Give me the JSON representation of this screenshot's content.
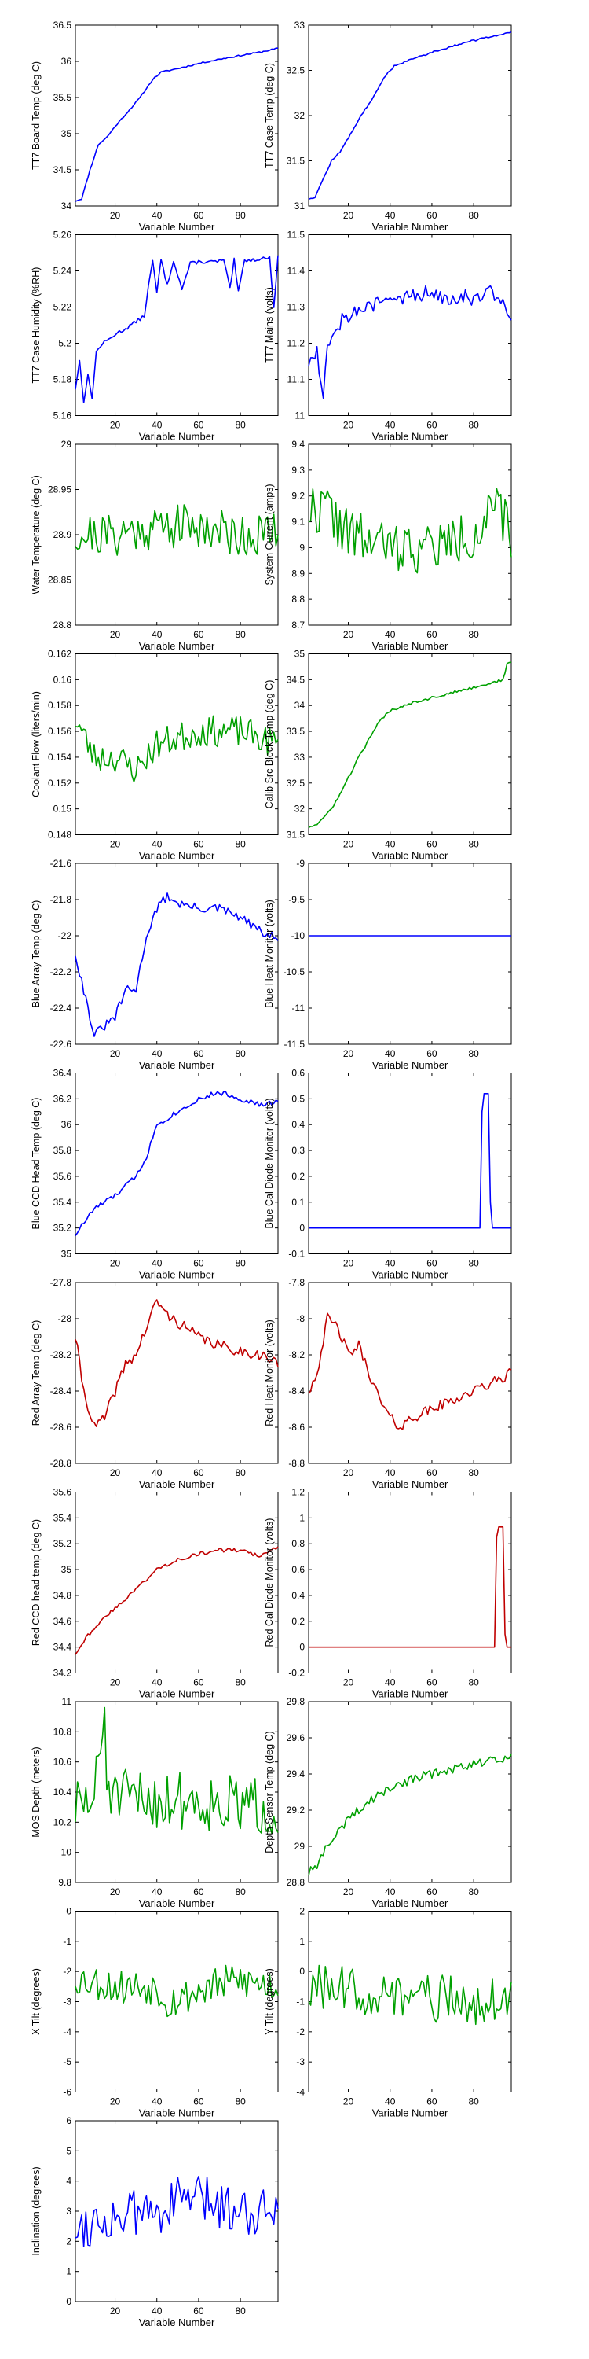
{
  "colors": {
    "blue": "#0000ff",
    "green": "#00a000",
    "red": "#c00000"
  },
  "chart_data": [
    {
      "type": "line",
      "xlabel": "Variable Number",
      "ylabel": "TT7 Board Temp (deg C)",
      "xlim": [
        1,
        98
      ],
      "ylim": [
        34,
        36.5
      ],
      "xticks": [
        20,
        40,
        60,
        80
      ],
      "yticks": [
        34,
        34.5,
        35,
        35.5,
        36,
        36.5
      ],
      "color": "blue",
      "noise": 0.01,
      "seed": 11,
      "x": [
        1,
        4,
        8,
        12,
        16,
        20,
        26,
        32,
        38,
        42,
        50,
        60,
        70,
        80,
        90,
        98
      ],
      "y": [
        34.07,
        34.1,
        34.5,
        34.85,
        34.95,
        35.1,
        35.3,
        35.5,
        35.75,
        35.85,
        35.9,
        35.97,
        36.03,
        36.08,
        36.13,
        36.18
      ]
    },
    {
      "type": "line",
      "xlabel": "Variable Number",
      "ylabel": "TT7 Case Temp (deg C)",
      "xlim": [
        1,
        98
      ],
      "ylim": [
        31,
        33
      ],
      "xticks": [
        20,
        40,
        60,
        80
      ],
      "yticks": [
        31,
        31.5,
        32,
        32.5,
        33
      ],
      "color": "blue",
      "noise": 0.01,
      "seed": 12,
      "x": [
        1,
        4,
        8,
        12,
        16,
        20,
        26,
        32,
        38,
        42,
        50,
        60,
        70,
        80,
        90,
        98
      ],
      "y": [
        31.08,
        31.1,
        31.3,
        31.5,
        31.6,
        31.75,
        32.0,
        32.2,
        32.45,
        32.55,
        32.62,
        32.7,
        32.77,
        32.83,
        32.88,
        32.93
      ]
    },
    {
      "type": "line",
      "xlabel": "Variable Number",
      "ylabel": "TT7 Case Humidity (%RH)",
      "xlim": [
        1,
        98
      ],
      "ylim": [
        5.16,
        5.26
      ],
      "xticks": [
        20,
        40,
        60,
        80
      ],
      "yticks": [
        5.16,
        5.18,
        5.2,
        5.22,
        5.24,
        5.26
      ],
      "color": "blue",
      "noise": 0.001,
      "seed": 13,
      "x": [
        1,
        3,
        5,
        7,
        9,
        11,
        14,
        17,
        20,
        25,
        30,
        34,
        36,
        38,
        40,
        42,
        45,
        48,
        52,
        56,
        60,
        64,
        68,
        72,
        75,
        77,
        79,
        82,
        86,
        90,
        94,
        96,
        98
      ],
      "y": [
        5.175,
        5.19,
        5.168,
        5.182,
        5.17,
        5.195,
        5.2,
        5.202,
        5.205,
        5.208,
        5.212,
        5.215,
        5.232,
        5.245,
        5.228,
        5.246,
        5.232,
        5.246,
        5.23,
        5.244,
        5.245,
        5.245,
        5.245,
        5.246,
        5.23,
        5.246,
        5.228,
        5.246,
        5.246,
        5.247,
        5.247,
        5.22,
        5.248
      ]
    },
    {
      "type": "line",
      "xlabel": "Variable Number",
      "ylabel": "TT7 Mains  (volts)",
      "xlim": [
        1,
        98
      ],
      "ylim": [
        11,
        11.5
      ],
      "xticks": [
        20,
        40,
        60,
        80
      ],
      "yticks": [
        11,
        11.1,
        11.2,
        11.3,
        11.4,
        11.5
      ],
      "color": "blue",
      "noise": 0.025,
      "seed": 14,
      "x": [
        1,
        5,
        8,
        10,
        14,
        20,
        30,
        40,
        50,
        60,
        70,
        80,
        90,
        95,
        98
      ],
      "y": [
        11.15,
        11.18,
        11.05,
        11.2,
        11.25,
        11.28,
        11.3,
        11.32,
        11.33,
        11.34,
        11.33,
        11.33,
        11.34,
        11.3,
        11.27
      ]
    },
    {
      "type": "line",
      "xlabel": "Variable Number",
      "ylabel": "Water Temperature (deg C)",
      "xlim": [
        1,
        98
      ],
      "ylim": [
        28.8,
        29
      ],
      "xticks": [
        20,
        40,
        60,
        80
      ],
      "yticks": [
        28.8,
        28.85,
        28.9,
        28.95,
        29
      ],
      "color": "green",
      "noise": 0.025,
      "seed": 21,
      "x": [
        1,
        20,
        40,
        60,
        80,
        98
      ],
      "y": [
        28.9,
        28.9,
        28.91,
        28.91,
        28.9,
        28.9
      ]
    },
    {
      "type": "line",
      "xlabel": "Variable Number",
      "ylabel": "System Current (amps)",
      "xlim": [
        1,
        98
      ],
      "ylim": [
        8.7,
        9.4
      ],
      "xticks": [
        20,
        40,
        60,
        80
      ],
      "yticks": [
        8.7,
        8.8,
        8.9,
        9,
        9.1,
        9.2,
        9.3,
        9.4
      ],
      "color": "green",
      "noise": 0.1,
      "seed": 22,
      "x": [
        1,
        10,
        20,
        40,
        60,
        80,
        90,
        98
      ],
      "y": [
        9.15,
        9.15,
        9.05,
        9.0,
        9.0,
        9.05,
        9.15,
        9.05
      ]
    },
    {
      "type": "line",
      "xlabel": "Variable Number",
      "ylabel": "Coolant Flow (liters/min)",
      "xlim": [
        1,
        98
      ],
      "ylim": [
        0.148,
        0.162
      ],
      "xticks": [
        20,
        40,
        60,
        80
      ],
      "yticks": [
        0.148,
        0.15,
        0.152,
        0.154,
        0.156,
        0.158,
        0.16,
        0.162
      ],
      "color": "green",
      "noise": 0.0012,
      "seed": 23,
      "x": [
        1,
        10,
        20,
        30,
        40,
        60,
        80,
        98
      ],
      "y": [
        0.157,
        0.154,
        0.154,
        0.153,
        0.155,
        0.156,
        0.156,
        0.155
      ]
    },
    {
      "type": "line",
      "xlabel": "Variable Number",
      "ylabel": "Calib Src Block Temp (deg C)",
      "xlim": [
        1,
        98
      ],
      "ylim": [
        31.5,
        35
      ],
      "xticks": [
        20,
        40,
        60,
        80
      ],
      "yticks": [
        31.5,
        32,
        32.5,
        33,
        33.5,
        34,
        34.5,
        35
      ],
      "color": "green",
      "noise": 0.025,
      "seed": 24,
      "x": [
        1,
        5,
        10,
        15,
        20,
        25,
        30,
        35,
        40,
        50,
        60,
        70,
        80,
        90,
        94,
        96,
        98
      ],
      "y": [
        31.65,
        31.7,
        31.9,
        32.2,
        32.6,
        33.0,
        33.35,
        33.7,
        33.9,
        34.05,
        34.15,
        34.25,
        34.35,
        34.45,
        34.5,
        34.8,
        34.85
      ]
    },
    {
      "type": "line",
      "xlabel": "Variable Number",
      "ylabel": "Blue Array Temp (deg C)",
      "xlim": [
        1,
        98
      ],
      "ylim": [
        -22.6,
        -21.6
      ],
      "xticks": [
        20,
        40,
        60,
        80
      ],
      "yticks": [
        -22.6,
        -22.4,
        -22.2,
        -22,
        -21.8,
        -21.6
      ],
      "color": "blue",
      "noise": 0.025,
      "seed": 31,
      "x": [
        1,
        5,
        10,
        15,
        20,
        25,
        30,
        35,
        40,
        45,
        50,
        60,
        70,
        80,
        90,
        98
      ],
      "y": [
        -22.1,
        -22.3,
        -22.55,
        -22.5,
        -22.45,
        -22.3,
        -22.3,
        -22.0,
        -21.85,
        -21.78,
        -21.82,
        -21.85,
        -21.85,
        -21.9,
        -21.98,
        -22.02
      ]
    },
    {
      "type": "line",
      "xlabel": "Variable Number",
      "ylabel": "Blue Heat Monitor (volts)",
      "xlim": [
        1,
        98
      ],
      "ylim": [
        -11.5,
        -9
      ],
      "xticks": [
        20,
        40,
        60,
        80
      ],
      "yticks": [
        -11.5,
        -11,
        -10.5,
        -10,
        -9.5,
        -9
      ],
      "color": "blue",
      "noise": 0,
      "seed": 32,
      "x": [
        1,
        98
      ],
      "y": [
        -10,
        -10
      ]
    },
    {
      "type": "line",
      "xlabel": "Variable Number",
      "ylabel": "Blue CCD Head Temp (deg C)",
      "xlim": [
        1,
        98
      ],
      "ylim": [
        35,
        36.4
      ],
      "xticks": [
        20,
        40,
        60,
        80
      ],
      "yticks": [
        35,
        35.2,
        35.4,
        35.6,
        35.8,
        36,
        36.2,
        36.4
      ],
      "color": "blue",
      "noise": 0.02,
      "seed": 33,
      "x": [
        1,
        10,
        20,
        30,
        35,
        40,
        50,
        60,
        70,
        80,
        90,
        98
      ],
      "y": [
        35.15,
        35.35,
        35.45,
        35.6,
        35.75,
        36.0,
        36.1,
        36.2,
        36.25,
        36.2,
        36.15,
        36.18
      ]
    },
    {
      "type": "line",
      "xlabel": "Variable Number",
      "ylabel": "Blue Cal Diode Monitor (volts)",
      "xlim": [
        1,
        98
      ],
      "ylim": [
        -0.1,
        0.6
      ],
      "xticks": [
        20,
        40,
        60,
        80
      ],
      "yticks": [
        -0.1,
        0,
        0.1,
        0.2,
        0.3,
        0.4,
        0.5,
        0.6
      ],
      "color": "blue",
      "noise": 0,
      "seed": 34,
      "x": [
        1,
        83,
        84,
        85,
        87,
        88,
        89,
        98
      ],
      "y": [
        0,
        0,
        0.45,
        0.52,
        0.52,
        0.1,
        0,
        0
      ]
    },
    {
      "type": "line",
      "xlabel": "Variable Number",
      "ylabel": "Red Array Temp (deg C)",
      "xlim": [
        1,
        98
      ],
      "ylim": [
        -28.8,
        -27.8
      ],
      "xticks": [
        20,
        40,
        60,
        80
      ],
      "yticks": [
        -28.8,
        -28.6,
        -28.4,
        -28.2,
        -28,
        -27.8
      ],
      "color": "red",
      "noise": 0.03,
      "seed": 41,
      "x": [
        1,
        5,
        10,
        15,
        20,
        25,
        30,
        35,
        40,
        45,
        50,
        60,
        70,
        80,
        90,
        98
      ],
      "y": [
        -28.1,
        -28.4,
        -28.6,
        -28.55,
        -28.4,
        -28.25,
        -28.2,
        -28.05,
        -27.9,
        -27.98,
        -28.02,
        -28.1,
        -28.15,
        -28.18,
        -28.2,
        -28.25
      ]
    },
    {
      "type": "line",
      "xlabel": "Variable Number",
      "ylabel": "Red Heat Monitor (volts)",
      "xlim": [
        1,
        98
      ],
      "ylim": [
        -8.8,
        -7.8
      ],
      "xticks": [
        20,
        40,
        60,
        80
      ],
      "yticks": [
        -8.8,
        -8.6,
        -8.4,
        -8.2,
        -8,
        -7.8
      ],
      "color": "red",
      "noise": 0.03,
      "seed": 42,
      "x": [
        1,
        5,
        10,
        15,
        20,
        25,
        30,
        35,
        40,
        45,
        50,
        60,
        70,
        80,
        90,
        98
      ],
      "y": [
        -8.4,
        -8.3,
        -8.0,
        -8.05,
        -8.2,
        -8.15,
        -8.3,
        -8.45,
        -8.55,
        -8.6,
        -8.55,
        -8.5,
        -8.45,
        -8.4,
        -8.35,
        -8.3
      ]
    },
    {
      "type": "line",
      "xlabel": "Variable Number",
      "ylabel": "Red CCD head temp (deg C)",
      "xlim": [
        1,
        98
      ],
      "ylim": [
        34.2,
        35.6
      ],
      "xticks": [
        20,
        40,
        60,
        80
      ],
      "yticks": [
        34.2,
        34.4,
        34.6,
        34.8,
        35,
        35.2,
        35.4,
        35.6
      ],
      "color": "red",
      "noise": 0.015,
      "seed": 43,
      "x": [
        1,
        5,
        10,
        20,
        30,
        40,
        50,
        60,
        70,
        80,
        90,
        98
      ],
      "y": [
        34.35,
        34.45,
        34.55,
        34.7,
        34.85,
        35.0,
        35.08,
        35.12,
        35.15,
        35.15,
        35.1,
        35.18
      ]
    },
    {
      "type": "line",
      "xlabel": "Variable Number",
      "ylabel": "Red Cal Diode Monitor (volts)",
      "xlim": [
        1,
        98
      ],
      "ylim": [
        -0.2,
        1.2
      ],
      "xticks": [
        20,
        40,
        60,
        80
      ],
      "yticks": [
        -0.2,
        0,
        0.2,
        0.4,
        0.6,
        0.8,
        1,
        1.2
      ],
      "color": "red",
      "noise": 0,
      "seed": 44,
      "x": [
        1,
        90,
        91,
        92,
        94,
        95,
        96,
        98
      ],
      "y": [
        0,
        0,
        0.85,
        0.93,
        0.93,
        0.1,
        0,
        0
      ]
    },
    {
      "type": "line",
      "xlabel": "Variable Number",
      "ylabel": "MOS Depth  (meters)",
      "xlim": [
        1,
        98
      ],
      "ylim": [
        9.8,
        11
      ],
      "xticks": [
        20,
        40,
        60,
        80
      ],
      "yticks": [
        9.8,
        10,
        10.2,
        10.4,
        10.6,
        10.8,
        11
      ],
      "color": "green",
      "noise": 0.2,
      "seed": 51,
      "x": [
        1,
        10,
        14,
        15,
        16,
        20,
        40,
        60,
        80,
        98
      ],
      "y": [
        10.3,
        10.35,
        10.8,
        10.9,
        10.5,
        10.35,
        10.35,
        10.35,
        10.3,
        10.3
      ]
    },
    {
      "type": "line",
      "xlabel": "Variable Number",
      "ylabel": "Depth Sensor Temp (deg C)",
      "xlim": [
        1,
        98
      ],
      "ylim": [
        28.8,
        29.8
      ],
      "xticks": [
        20,
        40,
        60,
        80
      ],
      "yticks": [
        28.8,
        29,
        29.2,
        29.4,
        29.6,
        29.8
      ],
      "color": "green",
      "noise": 0.025,
      "seed": 52,
      "x": [
        1,
        5,
        10,
        20,
        30,
        40,
        50,
        60,
        70,
        80,
        90,
        98
      ],
      "y": [
        28.85,
        28.9,
        29.0,
        29.15,
        29.25,
        29.32,
        29.37,
        29.4,
        29.43,
        29.45,
        29.48,
        29.5
      ]
    },
    {
      "type": "line",
      "xlabel": "Variable Number",
      "ylabel": "X Tilt  (degrees)",
      "xlim": [
        1,
        98
      ],
      "ylim": [
        -6,
        0
      ],
      "xticks": [
        20,
        40,
        60,
        80
      ],
      "yticks": [
        -6,
        -5,
        -4,
        -3,
        -2,
        -1,
        0
      ],
      "color": "green",
      "noise": 0.6,
      "seed": 53,
      "x": [
        1,
        20,
        40,
        45,
        55,
        65,
        80,
        98
      ],
      "y": [
        -2.2,
        -2.5,
        -2.5,
        -3.0,
        -2.8,
        -2.5,
        -2.3,
        -2.5
      ]
    },
    {
      "type": "line",
      "xlabel": "Variable Number",
      "ylabel": "Y Tilt  (degrees)",
      "xlim": [
        1,
        98
      ],
      "ylim": [
        -4,
        2
      ],
      "xticks": [
        20,
        40,
        60,
        80
      ],
      "yticks": [
        -4,
        -3,
        -2,
        -1,
        0,
        1,
        2
      ],
      "color": "green",
      "noise": 0.8,
      "seed": 54,
      "x": [
        1,
        20,
        40,
        60,
        80,
        98
      ],
      "y": [
        -0.6,
        -0.6,
        -0.8,
        -0.9,
        -1.0,
        -0.9
      ]
    },
    {
      "type": "line",
      "xlabel": "Variable Number",
      "ylabel": "Inclination  (degrees)",
      "xlim": [
        1,
        98
      ],
      "ylim": [
        0,
        6
      ],
      "xticks": [
        20,
        40,
        60,
        80
      ],
      "yticks": [
        0,
        1,
        2,
        3,
        4,
        5,
        6
      ],
      "color": "blue",
      "noise": 0.8,
      "seed": 55,
      "x": [
        1,
        20,
        40,
        55,
        70,
        85,
        98
      ],
      "y": [
        2.5,
        2.8,
        3.0,
        3.5,
        3.2,
        3.0,
        3.2
      ]
    }
  ]
}
